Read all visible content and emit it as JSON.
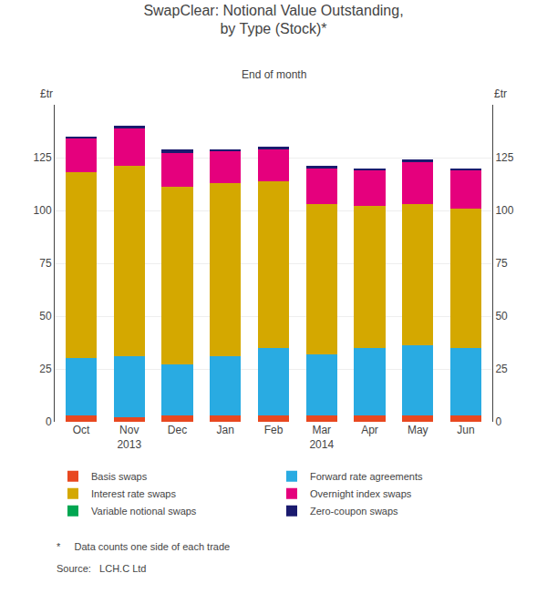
{
  "chart_data": {
    "type": "bar",
    "stacked": true,
    "title": "SwapClear: Notional Value Outstanding,\nby Type (Stock)*",
    "subtitle": "End of month",
    "ylabel": "£tr",
    "y2label": "£tr",
    "categories": [
      "Oct",
      "Nov\n2013",
      "Dec",
      "Jan",
      "Feb",
      "Mar\n2014",
      "Apr",
      "May",
      "Jun"
    ],
    "series": [
      {
        "name": "Basis swaps",
        "color": "#E84820",
        "values": [
          3,
          2,
          3,
          3,
          3,
          3,
          3,
          3,
          3
        ]
      },
      {
        "name": "Forward rate agreements",
        "color": "#29ABE2",
        "values": [
          27,
          29,
          24,
          28,
          32,
          29,
          32,
          33,
          32
        ]
      },
      {
        "name": "Interest rate swaps",
        "color": "#D4A800",
        "values": [
          88,
          90,
          84,
          82,
          79,
          71,
          67,
          67,
          66
        ]
      },
      {
        "name": "Overnight index swaps",
        "color": "#E5007D",
        "values": [
          16,
          18,
          16,
          15,
          15,
          17,
          17,
          20,
          18
        ]
      },
      {
        "name": "Variable notional swaps",
        "color": "#00A651",
        "values": [
          0,
          0,
          0,
          0,
          0,
          0,
          0,
          0,
          0
        ]
      },
      {
        "name": "Zero-coupon swaps",
        "color": "#1A1A6E",
        "values": [
          1,
          1,
          2,
          1,
          1,
          1,
          1,
          1,
          1
        ]
      }
    ],
    "ylim": [
      0,
      150
    ],
    "yticks": [
      0,
      25,
      50,
      75,
      100,
      125
    ],
    "y2lim": [
      0,
      150
    ],
    "y2ticks": [
      0,
      25,
      50,
      75,
      100,
      125
    ],
    "grid": true,
    "legend": "bottom",
    "annotations": [
      "*     Data counts one side of each trade",
      "Source:   LCH.C Ltd"
    ]
  }
}
